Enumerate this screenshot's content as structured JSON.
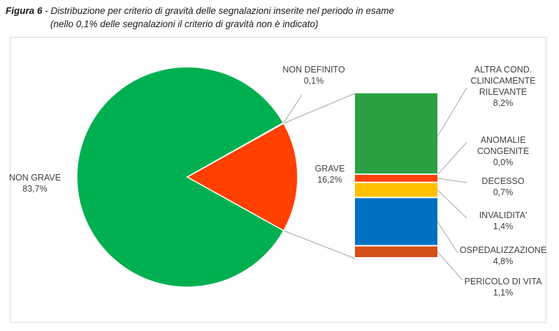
{
  "caption": {
    "label": "Figura 6",
    "separator": " - ",
    "line1": "Distribuzione per criterio di gravità delle segnalazioni inserite nel periodo in esame",
    "line2": "(nello 0,1% delle segnalazioni il criterio di gravità non è indicato)"
  },
  "chart_data": {
    "type": "pie",
    "subtype": "bar-of-pie",
    "slices": [
      {
        "label": "NON GRAVE",
        "value_label": "83,7%",
        "value": 83.7,
        "color": "#00b050"
      },
      {
        "label": "GRAVE",
        "value_label": "16,2%",
        "value": 16.2,
        "color": "#ff4000"
      },
      {
        "label": "NON DEFINITO",
        "value_label": "0,1%",
        "value": 0.1,
        "color": "#7f7f7f"
      }
    ],
    "breakdown_of": "GRAVE",
    "breakdown": [
      {
        "label": "ALTRA COND. CLINICAMENTE RILEVANTE",
        "label_lines": [
          "ALTRA COND.",
          "CLINICAMENTE",
          "RILEVANTE"
        ],
        "value_label": "8,2%",
        "value": 8.2,
        "color": "#2ca042"
      },
      {
        "label": "ANOMALIE CONGENITE",
        "label_lines": [
          "ANOMALIE",
          "CONGENITE"
        ],
        "value_label": "0,0%",
        "value": 0.0,
        "color": "#c0504d"
      },
      {
        "label": "DECESSO",
        "label_lines": [
          "DECESSO"
        ],
        "value_label": "0,7%",
        "value": 0.7,
        "color": "#ff4000"
      },
      {
        "label": "INVALIDITA'",
        "label_lines": [
          "INVALIDITA'"
        ],
        "value_label": "1,4%",
        "value": 1.4,
        "color": "#ffc000"
      },
      {
        "label": "OSPEDALIZZAZIONE",
        "label_lines": [
          "OSPEDALIZZAZIONE"
        ],
        "value_label": "4,8%",
        "value": 4.8,
        "color": "#0070c0"
      },
      {
        "label": "PERICOLO DI VITA",
        "label_lines": [
          "PERICOLO DI VITA"
        ],
        "value_label": "1,1%",
        "value": 1.1,
        "color": "#d55018"
      }
    ],
    "colors": {
      "connector": "#a6a6a6",
      "leader": "#a6a6a6",
      "text": "#404040"
    }
  }
}
